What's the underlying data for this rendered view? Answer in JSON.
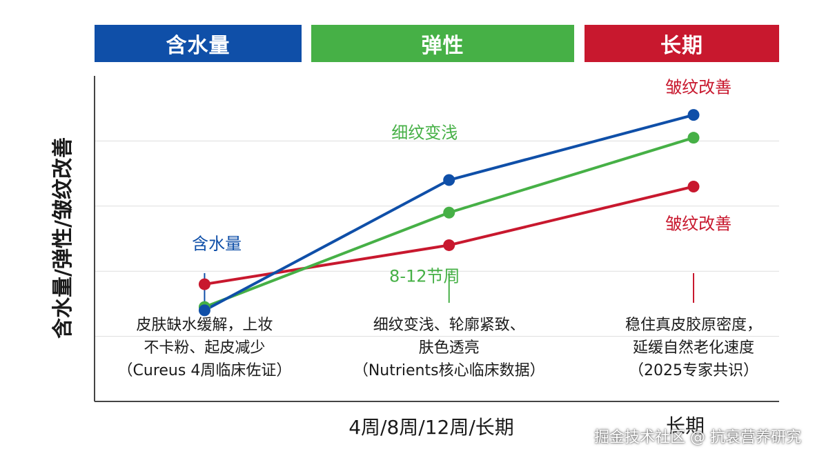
{
  "chart_data": {
    "type": "line",
    "headers": [
      {
        "id": "hydration",
        "label": "含水量",
        "color": "#0F4FA8"
      },
      {
        "id": "elasticity",
        "label": "弹性",
        "color": "#46B046"
      },
      {
        "id": "longterm",
        "label": "长期",
        "color": "#C8182E"
      }
    ],
    "ylabel": "含水量/弹性/皱纹改善",
    "xlabel": "4周/8周/12周/长期",
    "x_right_label": "长期",
    "x": [
      1,
      2,
      3
    ],
    "xlim": [
      0.55,
      3.35
    ],
    "ylim": [
      0,
      10
    ],
    "grid_y": [
      2,
      4,
      6,
      8
    ],
    "series": [
      {
        "name": "blue",
        "color": "#0F4FA8",
        "values": [
          2.8,
          6.8,
          8.8
        ]
      },
      {
        "name": "green",
        "color": "#46B046",
        "values": [
          2.9,
          5.8,
          8.1
        ]
      },
      {
        "name": "red",
        "color": "#C8182E",
        "values": [
          3.6,
          4.8,
          6.6
        ]
      }
    ],
    "annotations": [
      {
        "text": "含水量",
        "color": "#0F4FA8",
        "x": 1.05,
        "y": 4.9
      },
      {
        "text": "细纹变浅",
        "color": "#46B046",
        "x": 1.9,
        "y": 8.3
      },
      {
        "text": "8-12节周",
        "color": "#46B046",
        "x": 1.9,
        "y": 3.9
      },
      {
        "text": "皱纹改善",
        "color": "#C8182E",
        "x": 3.02,
        "y": 9.7
      },
      {
        "text": "皱纹改善",
        "color": "#C8182E",
        "x": 3.02,
        "y": 5.5
      }
    ],
    "markers": [
      {
        "x": 1,
        "color": "#0F4FA8"
      },
      {
        "x": 2,
        "color": "#46B046"
      },
      {
        "x": 3,
        "color": "#C8182E"
      }
    ],
    "descriptions": [
      {
        "x": 1,
        "lines": [
          "皮肤缺水缓解，上妆",
          "不卡粉、起皮减少",
          "（Cureus 4周临床佐证）"
        ]
      },
      {
        "x": 2,
        "lines": [
          "细纹变浅、轮廓紧致、",
          "肤色透亮",
          "（Nutrients核心临床数据）"
        ]
      },
      {
        "x": 3,
        "lines": [
          "稳住真皮胶原密度，",
          "延缓自然老化速度",
          "（2025专家共识）"
        ]
      }
    ]
  },
  "watermark": "掘金技术社区 @ 抗衰营养研究"
}
